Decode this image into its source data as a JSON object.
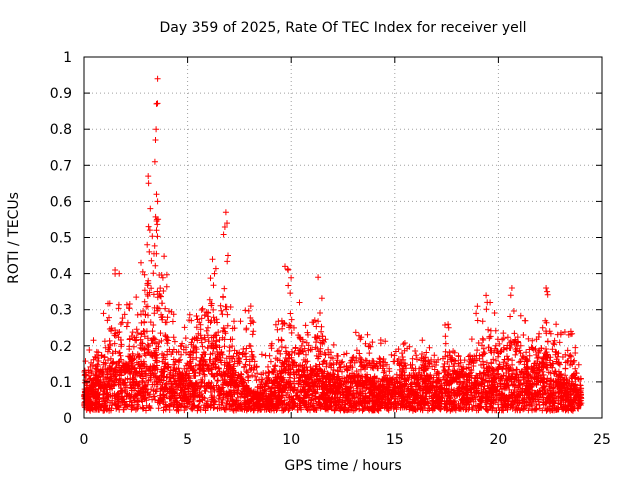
{
  "chart_data": {
    "type": "scatter",
    "title": "Day 359 of 2025, Rate Of TEC Index for receiver yell",
    "xlabel": "GPS time / hours",
    "ylabel": "ROTI / TECUs",
    "xlim": [
      0,
      25
    ],
    "ylim": [
      0,
      1
    ],
    "xticks": [
      "0",
      "5",
      "10",
      "15",
      "20",
      "25"
    ],
    "yticks": [
      "0",
      "0.1",
      "0.2",
      "0.3",
      "0.4",
      "0.5",
      "0.6",
      "0.7",
      "0.8",
      "0.9",
      "1"
    ],
    "grid": true,
    "marker": "+",
    "color": "#ff0000",
    "series": [
      {
        "name": "ROTI",
        "baseline": {
          "x": [
            0,
            0.5,
            1,
            1.5,
            2,
            2.5,
            3,
            3.3,
            3.5,
            3.8,
            4.2,
            5,
            5.6,
            6,
            6.2,
            6.5,
            7,
            7.5,
            8,
            8.5,
            9,
            9.5,
            9.8,
            10.2,
            10.8,
            11.3,
            12,
            12.5,
            13,
            13.5,
            14,
            14.5,
            15,
            15.5,
            16,
            16.5,
            17,
            17.5,
            18,
            18.5,
            19,
            19.5,
            20,
            20.5,
            21,
            21.5,
            22,
            22.3,
            22.7,
            23,
            23.5,
            24
          ],
          "y": [
            0.06,
            0.1,
            0.12,
            0.14,
            0.14,
            0.16,
            0.2,
            0.22,
            0.2,
            0.16,
            0.12,
            0.1,
            0.14,
            0.2,
            0.22,
            0.18,
            0.12,
            0.1,
            0.06,
            0.05,
            0.07,
            0.12,
            0.16,
            0.14,
            0.12,
            0.12,
            0.1,
            0.09,
            0.1,
            0.1,
            0.08,
            0.09,
            0.1,
            0.1,
            0.1,
            0.1,
            0.09,
            0.1,
            0.12,
            0.1,
            0.1,
            0.12,
            0.12,
            0.12,
            0.12,
            0.12,
            0.14,
            0.16,
            0.12,
            0.1,
            0.08,
            0.05
          ]
        },
        "envelope": {
          "x": [
            0,
            0.5,
            1,
            1.5,
            2,
            2.5,
            3,
            3.2,
            3.5,
            3.8,
            4.2,
            5,
            5.6,
            6,
            6.2,
            6.5,
            6.8,
            7,
            7.5,
            8,
            8.5,
            9,
            9.5,
            9.8,
            10.2,
            10.8,
            11.3,
            12,
            12.5,
            13,
            13.5,
            14,
            14.5,
            15,
            15.5,
            16,
            16.5,
            17,
            17.5,
            18,
            18.5,
            19,
            19.5,
            20,
            20.5,
            21,
            21.5,
            22,
            22.3,
            22.7,
            23,
            23.5,
            24
          ],
          "y": [
            0.16,
            0.2,
            0.3,
            0.38,
            0.3,
            0.35,
            0.45,
            0.68,
            0.95,
            0.5,
            0.3,
            0.25,
            0.34,
            0.4,
            0.44,
            0.38,
            0.57,
            0.3,
            0.25,
            0.31,
            0.15,
            0.2,
            0.3,
            0.43,
            0.33,
            0.25,
            0.4,
            0.2,
            0.18,
            0.22,
            0.22,
            0.2,
            0.2,
            0.2,
            0.19,
            0.22,
            0.2,
            0.18,
            0.25,
            0.2,
            0.2,
            0.3,
            0.33,
            0.25,
            0.25,
            0.36,
            0.2,
            0.3,
            0.36,
            0.25,
            0.22,
            0.24,
            0.1
          ]
        },
        "peaks": [
          {
            "x": 3.55,
            "y": 0.94
          },
          {
            "x": 3.5,
            "y": 0.87
          },
          {
            "x": 3.48,
            "y": 0.8
          },
          {
            "x": 3.45,
            "y": 0.77
          },
          {
            "x": 3.42,
            "y": 0.71
          },
          {
            "x": 3.1,
            "y": 0.67
          },
          {
            "x": 3.12,
            "y": 0.65
          },
          {
            "x": 3.5,
            "y": 0.62
          },
          {
            "x": 3.55,
            "y": 0.6
          },
          {
            "x": 3.2,
            "y": 0.58
          },
          {
            "x": 3.52,
            "y": 0.55
          },
          {
            "x": 3.5,
            "y": 0.52
          },
          {
            "x": 3.05,
            "y": 0.48
          },
          {
            "x": 3.15,
            "y": 0.46
          },
          {
            "x": 6.85,
            "y": 0.57
          },
          {
            "x": 6.9,
            "y": 0.54
          },
          {
            "x": 6.95,
            "y": 0.45
          },
          {
            "x": 6.2,
            "y": 0.44
          },
          {
            "x": 6.3,
            "y": 0.4
          },
          {
            "x": 9.7,
            "y": 0.42
          },
          {
            "x": 9.85,
            "y": 0.41
          },
          {
            "x": 11.3,
            "y": 0.39
          },
          {
            "x": 1.5,
            "y": 0.41
          },
          {
            "x": 1.7,
            "y": 0.4
          },
          {
            "x": 2.75,
            "y": 0.43
          },
          {
            "x": 19.6,
            "y": 0.32
          },
          {
            "x": 20.65,
            "y": 0.36
          },
          {
            "x": 20.6,
            "y": 0.34
          },
          {
            "x": 22.3,
            "y": 0.36
          },
          {
            "x": 22.35,
            "y": 0.35
          },
          {
            "x": 8.05,
            "y": 0.31
          },
          {
            "x": 10.4,
            "y": 0.32
          },
          {
            "x": 17.6,
            "y": 0.25
          },
          {
            "x": 19.0,
            "y": 0.27
          },
          {
            "x": 23.5,
            "y": 0.24
          }
        ]
      }
    ]
  }
}
